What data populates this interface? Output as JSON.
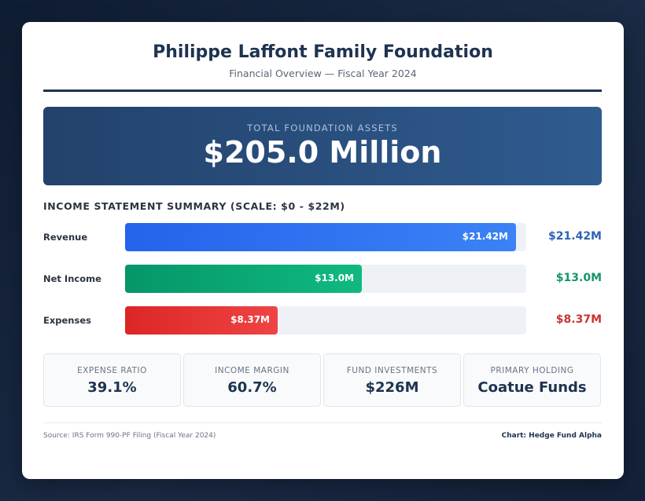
{
  "header": {
    "title": "Philippe Laffont Family Foundation",
    "subtitle": "Financial Overview — Fiscal Year 2024"
  },
  "hero": {
    "label": "TOTAL FOUNDATION ASSETS",
    "value": "$205.0 Million"
  },
  "chart_data": {
    "type": "bar",
    "orientation": "horizontal",
    "title": "INCOME STATEMENT SUMMARY (SCALE: $0 - $22M)",
    "xlim": [
      0,
      22
    ],
    "unit": "$M",
    "categories": [
      "Revenue",
      "Net Income",
      "Expenses"
    ],
    "values": [
      21.42,
      13.0,
      8.37
    ],
    "value_labels": [
      "$21.42M",
      "$13.0M",
      "$8.37M"
    ],
    "colors": [
      {
        "from": "#2563eb",
        "to": "#3b82f6",
        "text": "#2e62b8"
      },
      {
        "from": "#059669",
        "to": "#10b981",
        "text": "#16956a"
      },
      {
        "from": "#dc2626",
        "to": "#ef4444",
        "text": "#c93434"
      }
    ]
  },
  "stats": [
    {
      "label": "EXPENSE RATIO",
      "value": "39.1%"
    },
    {
      "label": "INCOME MARGIN",
      "value": "60.7%"
    },
    {
      "label": "FUND INVESTMENTS",
      "value": "$226M"
    },
    {
      "label": "PRIMARY HOLDING",
      "value": "Coatue Funds"
    }
  ],
  "footer": {
    "source": "Source: IRS Form 990-PF Filing (Fiscal Year 2024)",
    "credit": "Chart: Hedge Fund Alpha"
  }
}
